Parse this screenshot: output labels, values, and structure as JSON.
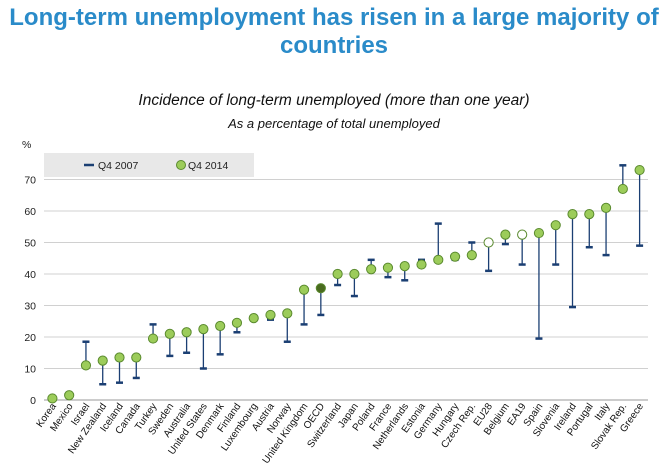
{
  "header": {
    "title_line1": "Long-term unemployment has risen in a large majority of",
    "title_line2": "countries"
  },
  "colors": {
    "title": "#2a8bc9",
    "q4_2007": "#1b3f73",
    "q4_2014_fill": "#9ccc5a",
    "q4_2014_stroke": "#5a8a2e",
    "oecd_fill": "#4a6b1f",
    "aggregate_fill": "#ffffff",
    "stem": "#1b3f73",
    "grid": "#d0d0d0",
    "legend_bg": "#e8e8e8"
  },
  "chart_data": {
    "type": "scatter",
    "title": "Incidence of long-term unemployed (more than one year)",
    "subtitle": "As a percentage of total unemployed",
    "ylabel": "%",
    "ylim": [
      0,
      80
    ],
    "yticks": [
      0,
      10,
      20,
      30,
      40,
      50,
      60,
      70
    ],
    "legend": [
      "Q4 2007",
      "Q4 2014"
    ],
    "categories": [
      "Korea",
      "Mexico",
      "Israel",
      "New Zealand",
      "Iceland",
      "Canada",
      "Turkey",
      "Sweden",
      "Australia",
      "United States",
      "Denmark",
      "Finland",
      "Luxembourg",
      "Austria",
      "Norway",
      "United Kingdom",
      "OECD",
      "Switzerland",
      "Japan",
      "Poland",
      "France",
      "Netherlands",
      "Estonia",
      "Germany",
      "Hungary",
      "Czech Rep.",
      "EU28",
      "Belgium",
      "EA19",
      "Spain",
      "Slovenia",
      "Ireland",
      "Portugal",
      "Italy",
      "Slovak Rep.",
      "Greece"
    ],
    "series": [
      {
        "name": "Q4 2007",
        "values": [
          1,
          2,
          18.5,
          5,
          5.5,
          7,
          24,
          14,
          15,
          10,
          14.5,
          21.5,
          26,
          25.5,
          18.5,
          24,
          27,
          36.5,
          33,
          44.5,
          39,
          38,
          44.5,
          56,
          44.5,
          50,
          41,
          49.5,
          43,
          19.5,
          43,
          29.5,
          48.5,
          46,
          74.5,
          49
        ]
      },
      {
        "name": "Q4 2014",
        "values": [
          0.5,
          1.5,
          11,
          12.5,
          13.5,
          13.5,
          19.5,
          21,
          21.5,
          22.5,
          23.5,
          24.5,
          26,
          27,
          27.5,
          35,
          35.5,
          40,
          40,
          41.5,
          42,
          42.5,
          43,
          44.5,
          45.5,
          46,
          50,
          52.5,
          52.5,
          53,
          55.5,
          59,
          59,
          61,
          67,
          73
        ]
      }
    ],
    "aggregates": [
      "OECD",
      "EU28",
      "EA19"
    ],
    "highlight": "OECD"
  }
}
